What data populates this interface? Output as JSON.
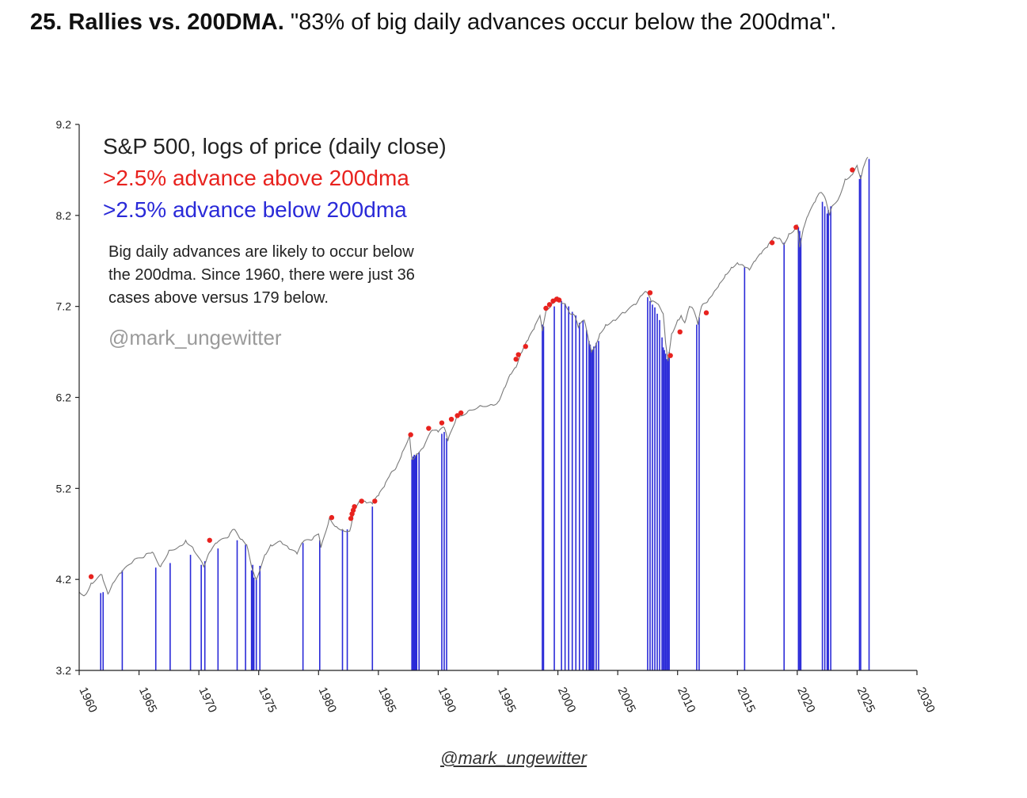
{
  "slide": {
    "title_bold": "25. Rallies vs. 200DMA.",
    "title_rest": " \"83% of big daily advances occur below the 200dma\"."
  },
  "footer": {
    "credit": "@mark_ungewitter"
  },
  "colors": {
    "price_line": "#7a7a7a",
    "above": "#e8221e",
    "below": "#2a2ad8",
    "axis": "#222222"
  },
  "chart_data": {
    "type": "line",
    "title": "S&P 500, logs of price (daily close)",
    "legend": [
      {
        "label": ">2.5% advance above 200dma",
        "color": "#e8221e"
      },
      {
        "label": ">2.5% advance below 200dma",
        "color": "#2a2ad8"
      }
    ],
    "legend_position": "top-left",
    "annotation_lines": [
      "Big daily advances are likely to occur below",
      "the 200dma. Since 1960, there were just 36",
      "cases above versus 179 below."
    ],
    "watermark": "@mark_ungewitter",
    "xlim": [
      1960,
      2030
    ],
    "ylim": [
      3.2,
      9.2
    ],
    "x_ticks": [
      1960,
      1965,
      1970,
      1975,
      1980,
      1985,
      1990,
      1995,
      2000,
      2005,
      2010,
      2015,
      2020,
      2025,
      2030
    ],
    "y_ticks": [
      "3.2",
      "4.2",
      "5.2",
      "6.2",
      "7.2",
      "8.2",
      "9.2"
    ],
    "grid": false,
    "series": [
      {
        "name": "S&P 500",
        "x": [
          1960.0,
          1960.5,
          1961.0,
          1961.9,
          1962.4,
          1962.9,
          1963.5,
          1964.5,
          1965.5,
          1966.1,
          1966.8,
          1967.5,
          1968.5,
          1968.9,
          1969.5,
          1970.4,
          1970.9,
          1971.5,
          1972.5,
          1972.9,
          1973.5,
          1974.0,
          1974.5,
          1974.8,
          1975.5,
          1976.0,
          1976.9,
          1977.5,
          1978.2,
          1978.7,
          1979.5,
          1980.0,
          1980.2,
          1980.9,
          1981.5,
          1982.0,
          1982.6,
          1983.0,
          1983.5,
          1984.0,
          1984.5,
          1985.0,
          1985.5,
          1986.0,
          1986.5,
          1987.0,
          1987.6,
          1987.8,
          1988.2,
          1988.7,
          1989.5,
          1990.0,
          1990.5,
          1990.8,
          1991.5,
          1992.5,
          1993.5,
          1994.5,
          1995.0,
          1995.5,
          1996.0,
          1996.5,
          1997.0,
          1997.5,
          1998.0,
          1998.5,
          1998.7,
          1999.0,
          1999.5,
          2000.0,
          2000.2,
          2000.6,
          2001.0,
          2001.4,
          2001.7,
          2002.2,
          2002.6,
          2002.8,
          2003.1,
          2003.5,
          2004.0,
          2004.7,
          2005.5,
          2006.5,
          2007.0,
          2007.4,
          2007.8,
          2008.3,
          2008.8,
          2009.0,
          2009.2,
          2009.5,
          2010.0,
          2010.3,
          2010.6,
          2011.0,
          2011.3,
          2011.7,
          2012.0,
          2012.5,
          2013.0,
          2013.5,
          2014.0,
          2014.5,
          2015.0,
          2015.5,
          2016.0,
          2016.5,
          2017.0,
          2017.5,
          2018.0,
          2018.5,
          2018.9,
          2019.3,
          2019.8,
          2020.0,
          2020.2,
          2020.5,
          2020.9,
          2021.5,
          2021.9,
          2022.3,
          2022.7,
          2022.9,
          2023.5,
          2024.0,
          2024.5,
          2025.0,
          2025.3,
          2025.5,
          2025.9
        ],
        "y": [
          4.06,
          4.03,
          4.16,
          4.25,
          4.04,
          4.17,
          4.27,
          4.4,
          4.46,
          4.5,
          4.34,
          4.52,
          4.57,
          4.63,
          4.55,
          4.34,
          4.5,
          4.6,
          4.67,
          4.75,
          4.64,
          4.58,
          4.3,
          4.2,
          4.47,
          4.58,
          4.61,
          4.54,
          4.48,
          4.61,
          4.64,
          4.7,
          4.55,
          4.87,
          4.78,
          4.75,
          4.73,
          4.98,
          5.07,
          5.04,
          5.03,
          5.12,
          5.22,
          5.36,
          5.43,
          5.6,
          5.78,
          5.52,
          5.58,
          5.64,
          5.84,
          5.82,
          5.87,
          5.72,
          5.97,
          6.05,
          6.11,
          6.12,
          6.15,
          6.3,
          6.45,
          6.53,
          6.7,
          6.83,
          6.95,
          7.1,
          6.93,
          7.15,
          7.23,
          7.3,
          7.26,
          7.23,
          7.12,
          7.1,
          6.97,
          7.05,
          6.8,
          6.7,
          6.75,
          6.9,
          7.0,
          7.05,
          7.13,
          7.22,
          7.32,
          7.36,
          7.25,
          7.23,
          7.12,
          6.8,
          6.6,
          6.9,
          7.05,
          7.1,
          7.02,
          7.2,
          7.17,
          7.0,
          7.2,
          7.25,
          7.35,
          7.45,
          7.55,
          7.63,
          7.68,
          7.65,
          7.6,
          7.7,
          7.78,
          7.85,
          7.95,
          7.95,
          7.88,
          8.0,
          8.05,
          8.1,
          7.85,
          8.05,
          8.2,
          8.35,
          8.45,
          8.4,
          8.2,
          8.3,
          8.4,
          8.6,
          8.64,
          8.75,
          8.6,
          8.72,
          8.84
        ]
      }
    ],
    "points_above": [
      [
        1961.0,
        4.23
      ],
      [
        1970.9,
        4.63
      ],
      [
        1981.1,
        4.88
      ],
      [
        1982.7,
        4.87
      ],
      [
        1982.8,
        4.92
      ],
      [
        1982.9,
        4.96
      ],
      [
        1983.0,
        5.0
      ],
      [
        1983.6,
        5.06
      ],
      [
        1984.7,
        5.06
      ],
      [
        1987.7,
        5.79
      ],
      [
        1989.2,
        5.86
      ],
      [
        1990.3,
        5.92
      ],
      [
        1991.1,
        5.96
      ],
      [
        1991.6,
        6.0
      ],
      [
        1991.9,
        6.03
      ],
      [
        1996.5,
        6.62
      ],
      [
        1996.7,
        6.67
      ],
      [
        1997.3,
        6.76
      ],
      [
        1999.0,
        7.18
      ],
      [
        1999.3,
        7.22
      ],
      [
        1999.6,
        7.26
      ],
      [
        1999.9,
        7.28
      ],
      [
        2000.1,
        7.27
      ],
      [
        2007.7,
        7.35
      ],
      [
        2009.4,
        6.66
      ],
      [
        2010.2,
        6.92
      ],
      [
        2012.4,
        7.13
      ],
      [
        2017.9,
        7.9
      ],
      [
        2019.9,
        8.07
      ],
      [
        2024.6,
        8.7
      ]
    ],
    "below_lines": [
      [
        1961.8,
        4.05
      ],
      [
        1962.0,
        4.06
      ],
      [
        1963.6,
        4.3
      ],
      [
        1966.4,
        4.33
      ],
      [
        1967.6,
        4.38
      ],
      [
        1969.3,
        4.47
      ],
      [
        1970.2,
        4.36
      ],
      [
        1970.5,
        4.4
      ],
      [
        1971.6,
        4.54
      ],
      [
        1973.2,
        4.63
      ],
      [
        1973.9,
        4.58
      ],
      [
        1974.4,
        4.3
      ],
      [
        1974.5,
        4.36
      ],
      [
        1974.6,
        4.22
      ],
      [
        1974.8,
        4.2
      ],
      [
        1975.1,
        4.35
      ],
      [
        1978.7,
        4.6
      ],
      [
        1980.1,
        4.63
      ],
      [
        1982.0,
        4.74
      ],
      [
        1982.4,
        4.75
      ],
      [
        1984.5,
        5.0
      ],
      [
        1987.8,
        5.52
      ],
      [
        1987.9,
        5.55
      ],
      [
        1988.0,
        5.57
      ],
      [
        1988.1,
        5.56
      ],
      [
        1988.2,
        5.57
      ],
      [
        1988.4,
        5.6
      ],
      [
        1990.3,
        5.8
      ],
      [
        1990.5,
        5.82
      ],
      [
        1990.7,
        5.75
      ],
      [
        1998.7,
        7.0
      ],
      [
        1998.8,
        6.98
      ],
      [
        1999.7,
        7.2
      ],
      [
        2000.3,
        7.26
      ],
      [
        2000.6,
        7.23
      ],
      [
        2000.9,
        7.2
      ],
      [
        2001.2,
        7.14
      ],
      [
        2001.5,
        7.1
      ],
      [
        2001.8,
        7.02
      ],
      [
        2002.1,
        7.04
      ],
      [
        2002.4,
        6.94
      ],
      [
        2002.6,
        6.82
      ],
      [
        2002.7,
        6.78
      ],
      [
        2002.8,
        6.72
      ],
      [
        2002.9,
        6.72
      ],
      [
        2003.0,
        6.76
      ],
      [
        2003.2,
        6.8
      ],
      [
        2003.4,
        6.82
      ],
      [
        2007.5,
        7.3
      ],
      [
        2007.7,
        7.26
      ],
      [
        2007.9,
        7.22
      ],
      [
        2008.1,
        7.19
      ],
      [
        2008.3,
        7.12
      ],
      [
        2008.5,
        7.05
      ],
      [
        2008.7,
        6.86
      ],
      [
        2008.8,
        6.75
      ],
      [
        2008.9,
        6.72
      ],
      [
        2009.0,
        6.68
      ],
      [
        2009.1,
        6.62
      ],
      [
        2009.2,
        6.63
      ],
      [
        2009.3,
        6.7
      ],
      [
        2011.6,
        7.0
      ],
      [
        2011.8,
        7.08
      ],
      [
        2015.6,
        7.63
      ],
      [
        2018.9,
        7.9
      ],
      [
        2020.1,
        8.07
      ],
      [
        2020.2,
        8.03
      ],
      [
        2020.3,
        7.95
      ],
      [
        2022.1,
        8.35
      ],
      [
        2022.3,
        8.3
      ],
      [
        2022.5,
        8.22
      ],
      [
        2022.6,
        8.26
      ],
      [
        2022.8,
        8.3
      ],
      [
        2025.2,
        8.6
      ],
      [
        2025.3,
        8.64
      ],
      [
        2026.0,
        8.82
      ]
    ]
  }
}
